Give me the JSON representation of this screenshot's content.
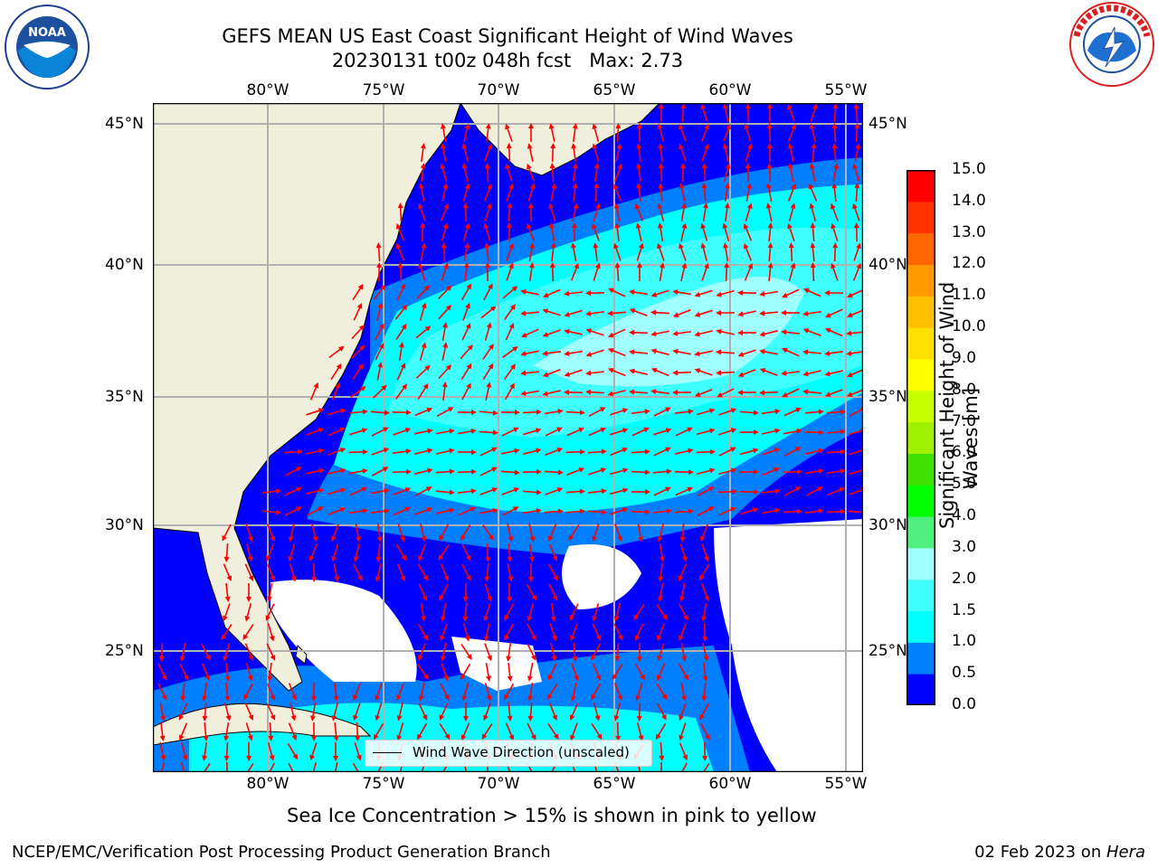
{
  "header": {
    "title_line1": "GEFS MEAN US East Coast Significant Height of Wind Waves",
    "title_line2": "20230131 t00z 048h fcst   Max: 2.73"
  },
  "logos": {
    "left": {
      "name": "NOAA",
      "ring_text": "NATIONAL OCEANIC AND ATMOSPHERIC ADMINISTRATION · U.S. DEPARTMENT OF COMMERCE"
    },
    "right": {
      "name": "NATIONAL WEATHER SERVICE"
    }
  },
  "map": {
    "lon_labels": [
      "80°W",
      "75°W",
      "70°W",
      "65°W",
      "60°W",
      "55°W"
    ],
    "lat_labels": [
      "45°N",
      "40°N",
      "35°N",
      "30°N",
      "25°N"
    ],
    "legend_label": "Wind Wave Direction (unscaled)",
    "colors": {
      "land": "#efefdc",
      "no_data": "#ffffff",
      "grid": "#b0b0b0",
      "arrow": "#ff0000"
    }
  },
  "colorbar": {
    "label_line1": "Significant Height of Wind",
    "label_line2": "Waves [m]",
    "ticks": [
      "0.0",
      "0.5",
      "1.0",
      "1.5",
      "2.0",
      "3.0",
      "4.0",
      "5.0",
      "6.0",
      "7.0",
      "8.0",
      "9.0",
      "10.0",
      "11.0",
      "12.0",
      "13.0",
      "14.0",
      "15.0"
    ],
    "colors": [
      "#0000ff",
      "#0080ff",
      "#00ffff",
      "#40ffff",
      "#a0ffff",
      "#50f080",
      "#00ff00",
      "#40e000",
      "#a0f000",
      "#c8ff00",
      "#ffff00",
      "#ffe000",
      "#ffc000",
      "#ff9900",
      "#ff6600",
      "#ff3300",
      "#ff0000"
    ]
  },
  "caption": "Sea Ice Concentration > 15% is shown in pink to yellow",
  "footer": {
    "left": "NCEP/EMC/Verification Post Processing Product Generation Branch",
    "right_date": "02 Feb 2023 on ",
    "right_machine": "Hera"
  }
}
